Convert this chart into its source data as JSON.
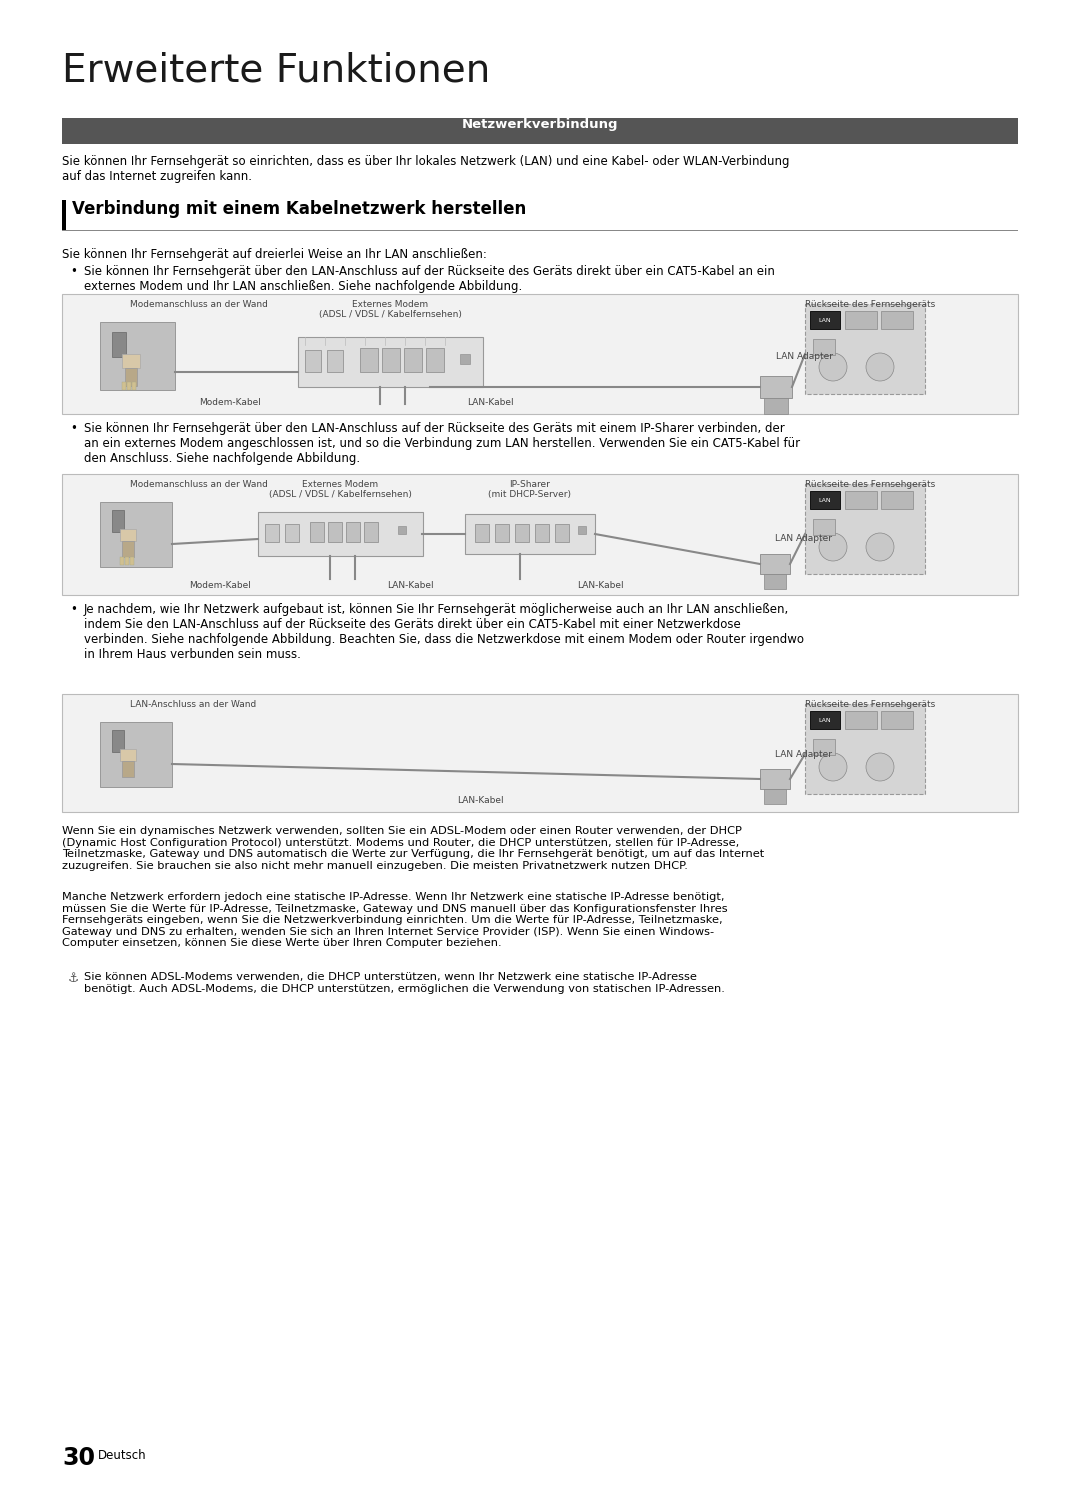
{
  "page_title": "Erweiterte Funktionen",
  "section_header": "Netzwerkverbindung",
  "section_header_bg": "#555555",
  "section_header_fg": "#ffffff",
  "subsection_title": "Verbindung mit einem Kabelnetzwerk herstellen",
  "intro_text": "Sie können Ihr Fernsehgerät so einrichten, dass es über Ihr lokales Netzwerk (LAN) und eine Kabel- oder WLAN-Verbindung\nauf das Internet zugreifen kann.",
  "body_intro": "Sie können Ihr Fernsehgerät auf dreierlei Weise an Ihr LAN anschließen:",
  "bullet1_text": "Sie können Ihr Fernsehgerät über den LAN-Anschluss auf der Rückseite des Geräts direkt über ein CAT5-Kabel an ein\nexternes Modem und Ihr LAN anschließen. Siehe nachfolgende Abbildung.",
  "bullet2_text": "Sie können Ihr Fernsehgerät über den LAN-Anschluss auf der Rückseite des Geräts mit einem IP-Sharer verbinden, der\nan ein externes Modem angeschlossen ist, und so die Verbindung zum LAN herstellen. Verwenden Sie ein CAT5-Kabel für\nden Anschluss. Siehe nachfolgende Abbildung.",
  "bullet3_text": "Je nachdem, wie Ihr Netzwerk aufgebaut ist, können Sie Ihr Fernsehgerät möglicherweise auch an Ihr LAN anschließen,\nindem Sie den LAN-Anschluss auf der Rückseite des Geräts direkt über ein CAT5-Kabel mit einer Netzwerkdose\nverbinden. Siehe nachfolgende Abbildung. Beachten Sie, dass die Netzwerkdose mit einem Modem oder Router irgendwo\nin Ihrem Haus verbunden sein muss.",
  "footer_text1": "Wenn Sie ein dynamisches Netzwerk verwenden, sollten Sie ein ADSL-Modem oder einen Router verwenden, der DHCP\n(Dynamic Host Configuration Protocol) unterstützt. Modems und Router, die DHCP unterstützen, stellen für IP-Adresse,\nTeilnetzmaske, Gateway und DNS automatisch die Werte zur Verfügung, die Ihr Fernsehgerät benötigt, um auf das Internet\nzuzugreifen. Sie brauchen sie also nicht mehr manuell einzugeben. Die meisten Privatnetzwerk nutzen DHCP.",
  "footer_text2": "Manche Netzwerk erfordern jedoch eine statische IP-Adresse. Wenn Ihr Netzwerk eine statische IP-Adresse benötigt,\nmüssen Sie die Werte für IP-Adresse, Teilnetzmaske, Gateway und DNS manuell über das Konfigurationsfenster Ihres\nFernsehgeräts eingeben, wenn Sie die Netzwerkverbindung einrichten. Um die Werte für IP-Adresse, Teilnetzmaske,\nGateway und DNS zu erhalten, wenden Sie sich an Ihren Internet Service Provider (ISP). Wenn Sie einen Windows-\nComputer einsetzen, können Sie diese Werte über Ihren Computer beziehen.",
  "footer_note": "Sie können ADSL-Modems verwenden, die DHCP unterstützen, wenn Ihr Netzwerk eine statische IP-Adresse\nbenötigt. Auch ADSL-Modems, die DHCP unterstützen, ermöglichen die Verwendung von statischen IP-Adressen.",
  "page_number": "30",
  "page_language": "Deutsch",
  "bg_color": "#ffffff",
  "diagram1_labels": {
    "wall": "Modemanschluss an der Wand",
    "modem": "Externes Modem\n(ADSL / VDSL / Kabelfernsehen)",
    "tv_back": "Rückseite des Fernsehgeräts",
    "modem_cable": "Modem-Kabel",
    "lan_cable": "LAN-Kabel",
    "lan_adapter": "LAN Adapter"
  },
  "diagram2_labels": {
    "wall": "Modemanschluss an der Wand",
    "modem": "Externes Modem\n(ADSL / VDSL / Kabelfernsehen)",
    "ip_sharer": "IP-Sharer\n(mit DHCP-Server)",
    "tv_back": "Rückseite des Fernsehgeräts",
    "modem_cable": "Modem-Kabel",
    "lan_cable1": "LAN-Kabel",
    "lan_cable2": "LAN-Kabel",
    "lan_adapter": "LAN Adapter"
  },
  "diagram3_labels": {
    "wall": "LAN-Anschluss an der Wand",
    "tv_back": "Rückseite des Fernsehgeräts",
    "lan_cable": "LAN-Kabel",
    "lan_adapter": "LAN Adapter"
  }
}
